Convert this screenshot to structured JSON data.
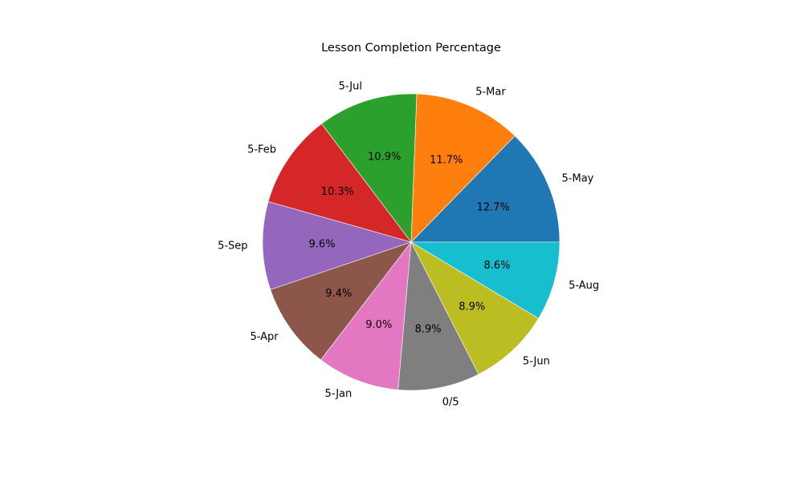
{
  "chart_data": {
    "type": "pie",
    "title": "Lesson Completion Percentage",
    "start_angle_deg": 0,
    "direction": "counterclockwise",
    "slices": [
      {
        "label": "5-May",
        "value": 12.7,
        "pct_label": "12.7%",
        "color": "#1f77b4"
      },
      {
        "label": "5-Mar",
        "value": 11.7,
        "pct_label": "11.7%",
        "color": "#ff7f0e"
      },
      {
        "label": "5-Jul",
        "value": 10.9,
        "pct_label": "10.9%",
        "color": "#2ca02c"
      },
      {
        "label": "5-Feb",
        "value": 10.3,
        "pct_label": "10.3%",
        "color": "#d62728"
      },
      {
        "label": "5-Sep",
        "value": 9.6,
        "pct_label": "9.6%",
        "color": "#9467bd"
      },
      {
        "label": "5-Apr",
        "value": 9.4,
        "pct_label": "9.4%",
        "color": "#8c564b"
      },
      {
        "label": "5-Jan",
        "value": 9.0,
        "pct_label": "9.0%",
        "color": "#e377c2"
      },
      {
        "label": "0/5",
        "value": 8.9,
        "pct_label": "8.9%",
        "color": "#7f7f7f"
      },
      {
        "label": "5-Jun",
        "value": 8.9,
        "pct_label": "8.9%",
        "color": "#bcbd22"
      },
      {
        "label": "5-Aug",
        "value": 8.6,
        "pct_label": "8.6%",
        "color": "#17becf"
      }
    ]
  }
}
